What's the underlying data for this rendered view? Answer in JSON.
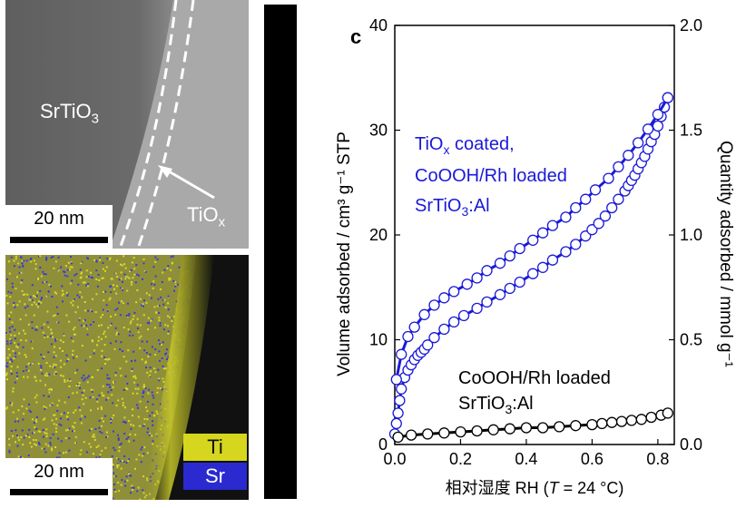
{
  "tem_panel": {
    "material_label": "SrTiO",
    "material_sub": "3",
    "coating_label": "TiO",
    "coating_sub": "x",
    "scale_label": "20 nm"
  },
  "eds_panel": {
    "scale_label": "20 nm",
    "legend": [
      {
        "label": "Ti",
        "color": "#d6d61e"
      },
      {
        "label": "Sr",
        "color": "#2a2ad0"
      }
    ]
  },
  "chart_data": {
    "type": "line",
    "panel_label": "c",
    "xlabel_prefix": "相对湿度 RH (",
    "xlabel_T": "T",
    "xlabel_suffix": " = 24 °C)",
    "ylabel_left": "Volume adsorbed / cm³ g⁻¹ STP",
    "ylabel_right": "Quantity adsorbed / mmol g⁻¹",
    "xlim": [
      0.0,
      0.85
    ],
    "ylim_left": [
      0,
      40
    ],
    "ylim_right": [
      0.0,
      2.0
    ],
    "x_ticks": [
      "0.0",
      "0.2",
      "0.4",
      "0.6",
      "0.8"
    ],
    "y_left_ticks": [
      "0",
      "10",
      "20",
      "30",
      "40"
    ],
    "y_right_ticks": [
      "0.0",
      "0.5",
      "1.0",
      "1.5",
      "2.0"
    ],
    "annotations": [
      {
        "lines": [
          "TiOx coated,",
          "CoOOH/Rh loaded",
          "SrTiO3:Al"
        ],
        "color": "#1a1ad8"
      },
      {
        "lines": [
          "CoOOH/Rh loaded",
          "SrTiO3:Al"
        ],
        "color": "#000000"
      }
    ],
    "series": [
      {
        "name": "TiOx coated, CoOOH/Rh loaded SrTiO3:Al (adsorption)",
        "color": "#1a1ad8",
        "x": [
          0.0,
          0.005,
          0.01,
          0.015,
          0.02,
          0.03,
          0.04,
          0.05,
          0.06,
          0.07,
          0.08,
          0.09,
          0.1,
          0.12,
          0.15,
          0.18,
          0.21,
          0.25,
          0.28,
          0.32,
          0.35,
          0.38,
          0.42,
          0.45,
          0.48,
          0.52,
          0.55,
          0.58,
          0.6,
          0.62,
          0.64,
          0.66,
          0.68,
          0.7,
          0.71,
          0.72,
          0.73,
          0.74,
          0.75,
          0.76,
          0.77,
          0.78,
          0.79,
          0.8,
          0.81,
          0.82,
          0.83
        ],
        "y": [
          1.0,
          2.0,
          3.0,
          4.2,
          5.3,
          6.4,
          7.1,
          7.6,
          8.1,
          8.5,
          8.8,
          9.1,
          9.5,
          10.2,
          11.0,
          11.7,
          12.3,
          13.0,
          13.6,
          14.3,
          14.9,
          15.5,
          16.3,
          16.9,
          17.6,
          18.4,
          19.1,
          19.9,
          20.5,
          21.1,
          21.8,
          22.6,
          23.4,
          24.2,
          24.7,
          25.2,
          25.7,
          26.3,
          26.9,
          27.5,
          28.2,
          28.9,
          29.6,
          30.4,
          31.3,
          32.2,
          33.1
        ]
      },
      {
        "name": "TiOx coated, CoOOH/Rh loaded SrTiO3:Al (desorption)",
        "color": "#1a1ad8",
        "x": [
          0.83,
          0.8,
          0.77,
          0.74,
          0.71,
          0.68,
          0.65,
          0.61,
          0.58,
          0.55,
          0.52,
          0.48,
          0.45,
          0.42,
          0.38,
          0.35,
          0.32,
          0.28,
          0.25,
          0.22,
          0.18,
          0.15,
          0.12,
          0.09,
          0.06,
          0.04,
          0.02,
          0.005
        ],
        "y": [
          33.1,
          31.5,
          30.1,
          28.8,
          27.6,
          26.5,
          25.4,
          24.3,
          23.4,
          22.6,
          21.7,
          20.9,
          20.2,
          19.5,
          18.7,
          18.0,
          17.3,
          16.6,
          15.9,
          15.3,
          14.6,
          14.0,
          13.3,
          12.4,
          11.2,
          10.3,
          8.6,
          6.2
        ]
      },
      {
        "name": "CoOOH/Rh loaded SrTiO3:Al",
        "color": "#000000",
        "x": [
          0.01,
          0.05,
          0.1,
          0.15,
          0.2,
          0.25,
          0.3,
          0.35,
          0.4,
          0.45,
          0.5,
          0.55,
          0.6,
          0.63,
          0.66,
          0.69,
          0.72,
          0.75,
          0.78,
          0.81,
          0.83
        ],
        "y": [
          0.7,
          0.9,
          1.0,
          1.1,
          1.2,
          1.3,
          1.4,
          1.5,
          1.6,
          1.6,
          1.7,
          1.8,
          1.9,
          2.0,
          2.1,
          2.2,
          2.3,
          2.4,
          2.6,
          2.8,
          3.0
        ]
      }
    ]
  }
}
